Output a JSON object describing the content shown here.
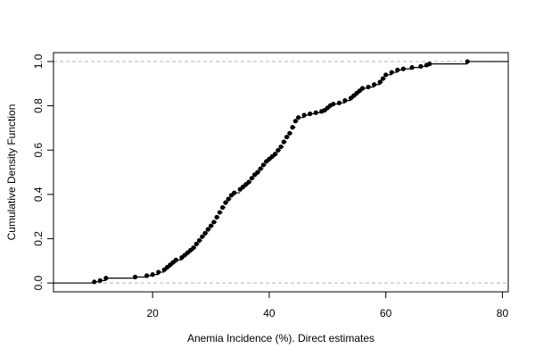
{
  "chart_data": {
    "type": "step",
    "title": "",
    "xlabel": "Anemia Incidence (%). Direct estimates",
    "ylabel": "Cumulative Density Function",
    "xlim": [
      3,
      81
    ],
    "ylim": [
      -0.04,
      1.04
    ],
    "xticks": [
      20,
      40,
      60,
      80
    ],
    "yticks": [
      0.0,
      0.2,
      0.4,
      0.6,
      0.8,
      1.0
    ],
    "xtick_labels": [
      "20",
      "40",
      "60",
      "80"
    ],
    "ytick_labels": [
      "0.0",
      "0.2",
      "0.4",
      "0.6",
      "0.8",
      "1.0"
    ],
    "reference_lines": [
      0,
      1
    ],
    "colors": {
      "line": "#000000",
      "points": "#000000",
      "reference": "#b3b3b3",
      "frame": "#000000"
    },
    "series": [
      {
        "x": [
          10.0,
          11.0,
          12.0,
          17.0,
          19.0,
          20.0,
          21.0,
          22.0,
          22.5,
          23.0,
          23.5,
          24.0,
          25.0,
          25.5,
          26.0,
          26.5,
          27.0,
          27.5,
          28.0,
          28.5,
          29.0,
          29.5,
          30.0,
          30.5,
          31.0,
          31.5,
          32.0,
          32.5,
          33.0,
          33.5,
          34.0,
          35.0,
          35.5,
          36.0,
          36.5,
          37.0,
          37.5,
          38.0,
          38.5,
          39.0,
          39.5,
          40.0,
          40.5,
          41.0,
          41.5,
          42.0,
          42.5,
          43.0,
          43.5,
          44.0,
          44.5,
          45.0,
          46.0,
          47.0,
          48.0,
          49.0,
          49.5,
          50.0,
          50.5,
          51.0,
          52.0,
          53.0,
          54.0,
          54.5,
          55.0,
          55.5,
          56.0,
          57.0,
          58.0,
          59.0,
          59.5,
          60.0,
          61.0,
          62.0,
          63.0,
          64.5,
          66.0,
          67.0,
          67.5,
          74.0
        ],
        "y": [
          0.005,
          0.011,
          0.022,
          0.027,
          0.033,
          0.038,
          0.049,
          0.06,
          0.071,
          0.082,
          0.093,
          0.104,
          0.115,
          0.126,
          0.137,
          0.148,
          0.159,
          0.176,
          0.192,
          0.209,
          0.225,
          0.242,
          0.258,
          0.275,
          0.297,
          0.319,
          0.341,
          0.363,
          0.379,
          0.396,
          0.407,
          0.423,
          0.434,
          0.445,
          0.456,
          0.473,
          0.489,
          0.5,
          0.516,
          0.533,
          0.549,
          0.56,
          0.571,
          0.582,
          0.599,
          0.615,
          0.637,
          0.659,
          0.676,
          0.703,
          0.731,
          0.747,
          0.758,
          0.764,
          0.769,
          0.775,
          0.78,
          0.791,
          0.802,
          0.808,
          0.813,
          0.824,
          0.835,
          0.846,
          0.857,
          0.868,
          0.879,
          0.885,
          0.896,
          0.907,
          0.923,
          0.94,
          0.951,
          0.962,
          0.967,
          0.973,
          0.978,
          0.984,
          0.989,
          1.0
        ]
      }
    ]
  }
}
